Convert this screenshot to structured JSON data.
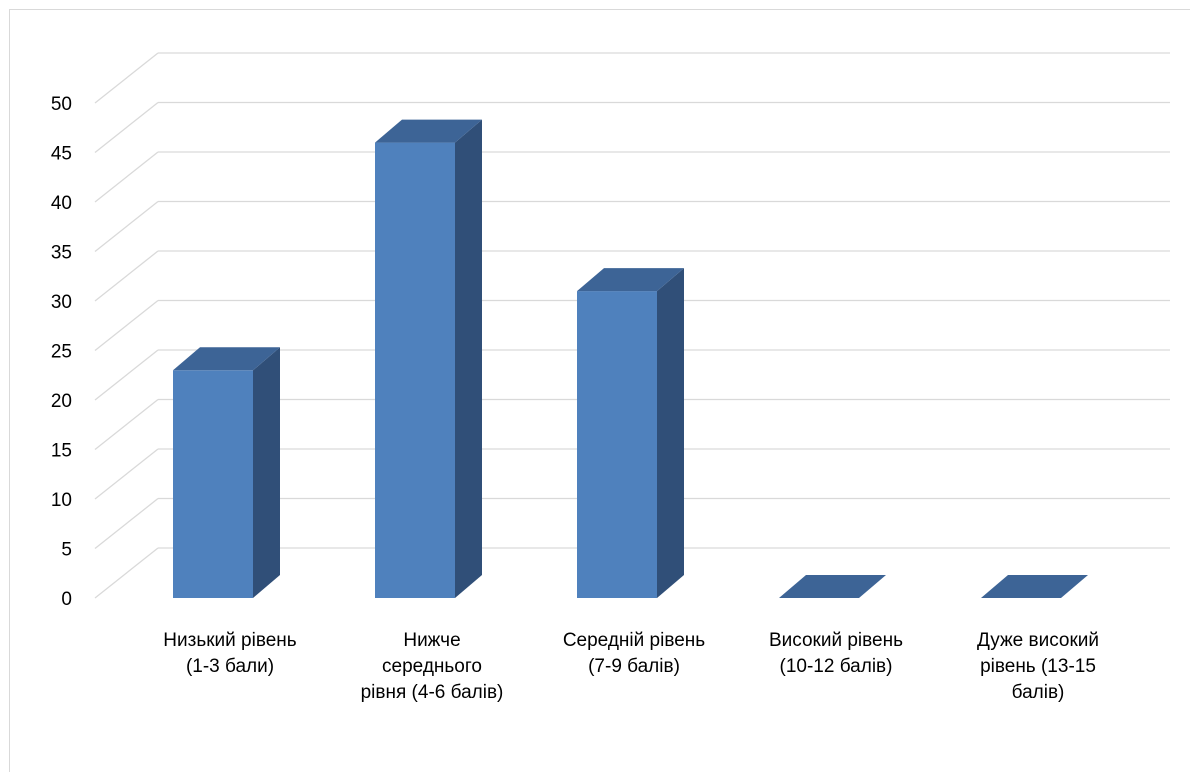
{
  "chart_data": {
    "type": "bar",
    "style": "3d-column",
    "categories": [
      [
        "Низький рівень",
        "(1-3 бали)"
      ],
      [
        "Нижче",
        "середнього",
        "рівня (4-6 балів)"
      ],
      [
        "Середній рівень",
        "(7-9 балів)"
      ],
      [
        "Високий рівень",
        "(10-12 балів)"
      ],
      [
        "Дуже високий",
        "рівень (13-15",
        "балів)"
      ]
    ],
    "values": [
      23,
      46,
      31,
      0,
      0
    ],
    "ylim": [
      0,
      50
    ],
    "yticks": [
      "0",
      "5",
      "10",
      "15",
      "20",
      "25",
      "30",
      "35",
      "40",
      "45",
      "50"
    ],
    "grid": true,
    "legend": "none",
    "colors": {
      "front": "#4f81bd",
      "side": "#304f78",
      "top": "#3d6496",
      "grid": "#d9d9d9"
    }
  }
}
